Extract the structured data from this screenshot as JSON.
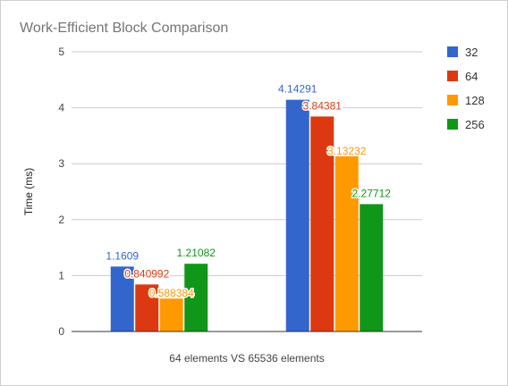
{
  "chart_data": {
    "type": "bar",
    "title": "Work-Efficient Block Comparison",
    "xlabel": "64 elements VS 65536 elements",
    "ylabel": "Time (ms)",
    "ylim": [
      0,
      5
    ],
    "yticks": [
      "0",
      "1",
      "2",
      "3",
      "4",
      "5"
    ],
    "grid": true,
    "legend_position": "right",
    "categories": [
      "",
      ""
    ],
    "series": [
      {
        "name": "32",
        "color": "#3366cc",
        "values": [
          1.1609,
          4.14291
        ],
        "labels": [
          "1.1609",
          "4.14291"
        ]
      },
      {
        "name": "64",
        "color": "#dc3912",
        "values": [
          0.840992,
          3.84381
        ],
        "labels": [
          "0.840992",
          "3.84381"
        ]
      },
      {
        "name": "128",
        "color": "#ff9900",
        "values": [
          0.588384,
          3.13232
        ],
        "labels": [
          "0.588384",
          "3.13232"
        ]
      },
      {
        "name": "256",
        "color": "#109618",
        "values": [
          1.21082,
          2.27712
        ],
        "labels": [
          "1.21082",
          "2.27712"
        ]
      }
    ]
  }
}
